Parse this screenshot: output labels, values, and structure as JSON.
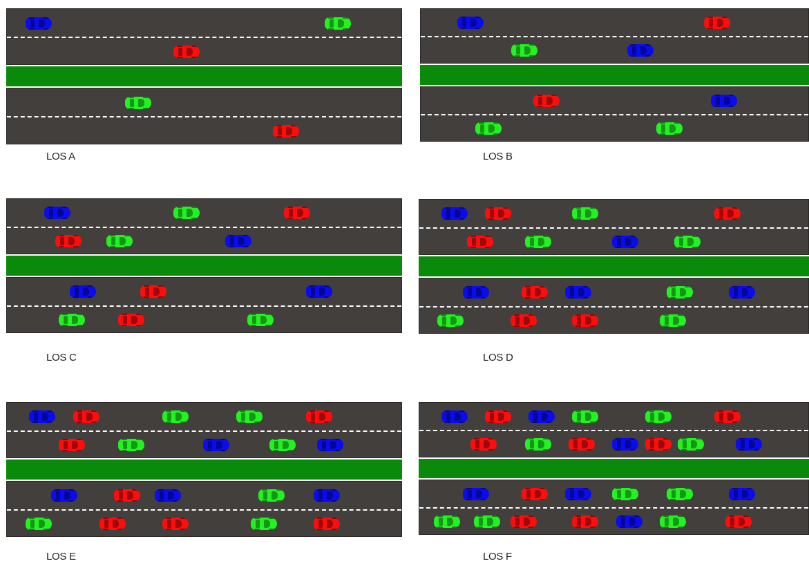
{
  "colors": {
    "red": "#ff0d0d",
    "green": "#22f222",
    "blue": "#0b0bf0",
    "asphalt": "#433f3c",
    "median": "#0a8a0a"
  },
  "panels": [
    {
      "label": "LOS A",
      "cars": [
        {
          "lane": 0,
          "c": "blue",
          "p": 0.05
        },
        {
          "lane": 0,
          "c": "green",
          "p": 0.86
        },
        {
          "lane": 1,
          "c": "red",
          "p": 0.45
        },
        {
          "lane": 2,
          "c": "green",
          "p": 0.32
        },
        {
          "lane": 3,
          "c": "red",
          "p": 0.72
        }
      ]
    },
    {
      "label": "LOS B",
      "cars": [
        {
          "lane": 0,
          "c": "blue",
          "p": 0.1
        },
        {
          "lane": 0,
          "c": "red",
          "p": 0.78
        },
        {
          "lane": 1,
          "c": "green",
          "p": 0.25
        },
        {
          "lane": 1,
          "c": "blue",
          "p": 0.57
        },
        {
          "lane": 2,
          "c": "red",
          "p": 0.31
        },
        {
          "lane": 2,
          "c": "blue",
          "p": 0.8
        },
        {
          "lane": 3,
          "c": "green",
          "p": 0.15
        },
        {
          "lane": 3,
          "c": "green",
          "p": 0.65
        }
      ]
    },
    {
      "label": "LOS C",
      "cars": [
        {
          "lane": 0,
          "c": "blue",
          "p": 0.1
        },
        {
          "lane": 0,
          "c": "green",
          "p": 0.45
        },
        {
          "lane": 0,
          "c": "red",
          "p": 0.75
        },
        {
          "lane": 1,
          "c": "red",
          "p": 0.13
        },
        {
          "lane": 1,
          "c": "green",
          "p": 0.27
        },
        {
          "lane": 1,
          "c": "blue",
          "p": 0.59
        },
        {
          "lane": 2,
          "c": "blue",
          "p": 0.17
        },
        {
          "lane": 2,
          "c": "red",
          "p": 0.36
        },
        {
          "lane": 2,
          "c": "blue",
          "p": 0.81
        },
        {
          "lane": 3,
          "c": "green",
          "p": 0.14
        },
        {
          "lane": 3,
          "c": "red",
          "p": 0.3
        },
        {
          "lane": 3,
          "c": "green",
          "p": 0.65
        }
      ]
    },
    {
      "label": "LOS D",
      "cars": [
        {
          "lane": 0,
          "c": "blue",
          "p": 0.06
        },
        {
          "lane": 0,
          "c": "red",
          "p": 0.18
        },
        {
          "lane": 0,
          "c": "green",
          "p": 0.42
        },
        {
          "lane": 0,
          "c": "red",
          "p": 0.81
        },
        {
          "lane": 1,
          "c": "red",
          "p": 0.13
        },
        {
          "lane": 1,
          "c": "green",
          "p": 0.29
        },
        {
          "lane": 1,
          "c": "blue",
          "p": 0.53
        },
        {
          "lane": 1,
          "c": "green",
          "p": 0.7
        },
        {
          "lane": 2,
          "c": "blue",
          "p": 0.12
        },
        {
          "lane": 2,
          "c": "red",
          "p": 0.28
        },
        {
          "lane": 2,
          "c": "blue",
          "p": 0.4
        },
        {
          "lane": 2,
          "c": "green",
          "p": 0.68
        },
        {
          "lane": 2,
          "c": "blue",
          "p": 0.85
        },
        {
          "lane": 3,
          "c": "green",
          "p": 0.05
        },
        {
          "lane": 3,
          "c": "red",
          "p": 0.25
        },
        {
          "lane": 3,
          "c": "red",
          "p": 0.42
        },
        {
          "lane": 3,
          "c": "green",
          "p": 0.66
        }
      ]
    },
    {
      "label": "LOS E",
      "cars": [
        {
          "lane": 0,
          "c": "blue",
          "p": 0.06
        },
        {
          "lane": 0,
          "c": "red",
          "p": 0.18
        },
        {
          "lane": 0,
          "c": "green",
          "p": 0.42
        },
        {
          "lane": 0,
          "c": "green",
          "p": 0.62
        },
        {
          "lane": 0,
          "c": "red",
          "p": 0.81
        },
        {
          "lane": 1,
          "c": "red",
          "p": 0.14
        },
        {
          "lane": 1,
          "c": "green",
          "p": 0.3
        },
        {
          "lane": 1,
          "c": "blue",
          "p": 0.53
        },
        {
          "lane": 1,
          "c": "green",
          "p": 0.71
        },
        {
          "lane": 1,
          "c": "blue",
          "p": 0.84
        },
        {
          "lane": 2,
          "c": "blue",
          "p": 0.12
        },
        {
          "lane": 2,
          "c": "red",
          "p": 0.29
        },
        {
          "lane": 2,
          "c": "blue",
          "p": 0.4
        },
        {
          "lane": 2,
          "c": "green",
          "p": 0.68
        },
        {
          "lane": 2,
          "c": "blue",
          "p": 0.83
        },
        {
          "lane": 3,
          "c": "green",
          "p": 0.05
        },
        {
          "lane": 3,
          "c": "red",
          "p": 0.25
        },
        {
          "lane": 3,
          "c": "red",
          "p": 0.42
        },
        {
          "lane": 3,
          "c": "green",
          "p": 0.66
        },
        {
          "lane": 3,
          "c": "red",
          "p": 0.83
        }
      ]
    },
    {
      "label": "LOS F",
      "cars": [
        {
          "lane": 0,
          "c": "blue",
          "p": 0.06
        },
        {
          "lane": 0,
          "c": "red",
          "p": 0.18
        },
        {
          "lane": 0,
          "c": "blue",
          "p": 0.3
        },
        {
          "lane": 0,
          "c": "green",
          "p": 0.42
        },
        {
          "lane": 0,
          "c": "green",
          "p": 0.62
        },
        {
          "lane": 0,
          "c": "red",
          "p": 0.81
        },
        {
          "lane": 1,
          "c": "red",
          "p": 0.14
        },
        {
          "lane": 1,
          "c": "green",
          "p": 0.29
        },
        {
          "lane": 1,
          "c": "red",
          "p": 0.41
        },
        {
          "lane": 1,
          "c": "blue",
          "p": 0.53
        },
        {
          "lane": 1,
          "c": "red",
          "p": 0.62
        },
        {
          "lane": 1,
          "c": "green",
          "p": 0.71
        },
        {
          "lane": 1,
          "c": "blue",
          "p": 0.87
        },
        {
          "lane": 2,
          "c": "blue",
          "p": 0.12
        },
        {
          "lane": 2,
          "c": "red",
          "p": 0.28
        },
        {
          "lane": 2,
          "c": "blue",
          "p": 0.4
        },
        {
          "lane": 2,
          "c": "green",
          "p": 0.53
        },
        {
          "lane": 2,
          "c": "green",
          "p": 0.68
        },
        {
          "lane": 2,
          "c": "blue",
          "p": 0.85
        },
        {
          "lane": 3,
          "c": "green",
          "p": 0.04
        },
        {
          "lane": 3,
          "c": "green",
          "p": 0.15
        },
        {
          "lane": 3,
          "c": "red",
          "p": 0.25
        },
        {
          "lane": 3,
          "c": "red",
          "p": 0.42
        },
        {
          "lane": 3,
          "c": "blue",
          "p": 0.54
        },
        {
          "lane": 3,
          "c": "green",
          "p": 0.66
        },
        {
          "lane": 3,
          "c": "red",
          "p": 0.84
        }
      ]
    }
  ]
}
